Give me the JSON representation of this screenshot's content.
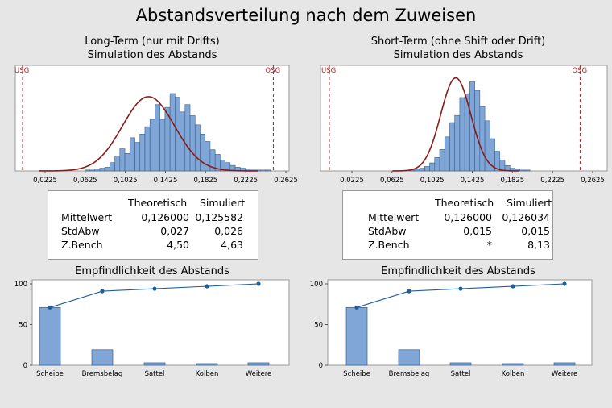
{
  "title": "Abstandsverteilung nach dem Zuweisen",
  "panels": [
    {
      "subtitle_line1": "Long-Term (nur mit Drifts)",
      "subtitle_line2": "Simulation des Abstands",
      "lsl_label": "USG",
      "usl_label": "OSG",
      "stats": {
        "col_theoretical": "Theoretisch",
        "col_simulated": "Simuliert",
        "rows": [
          {
            "label": "Mittelwert",
            "theoretical": "0,126000",
            "simulated": "0,125582"
          },
          {
            "label": "StdAbw",
            "theoretical": "0,027",
            "simulated": "0,026"
          },
          {
            "label": "Z.Bench",
            "theoretical": "4,50",
            "simulated": "4,63"
          }
        ]
      },
      "sensitivity_title": "Empfindlichkeit des Abstands"
    },
    {
      "subtitle_line1": "Short-Term (ohne Shift oder Drift)",
      "subtitle_line2": "Simulation des Abstands",
      "lsl_label": "USG",
      "usl_label": "OSG",
      "stats": {
        "col_theoretical": "Theoretisch",
        "col_simulated": "Simuliert",
        "rows": [
          {
            "label": "Mittelwert",
            "theoretical": "0,126000",
            "simulated": "0,126034"
          },
          {
            "label": "StdAbw",
            "theoretical": "0,015",
            "simulated": "0,015"
          },
          {
            "label": "Z.Bench",
            "theoretical": "*",
            "simulated": "8,13"
          }
        ]
      },
      "sensitivity_title": "Empfindlichkeit des Abstands"
    }
  ],
  "colors": {
    "bar_fill": "#7fa6d6",
    "bar_stroke": "#3a5f8a",
    "fit_curve": "#8b1a1a",
    "spec_line": "#b22222",
    "cum_line": "#1f5f99"
  },
  "chart_data": [
    {
      "type": "bar",
      "subtype": "histogram",
      "title": "",
      "x_tick_labels": [
        "0,0225",
        "0,0625",
        "0,1025",
        "0,1425",
        "0,1825",
        "0,2225",
        "0,2625"
      ],
      "x_ticks": [
        0.0225,
        0.0625,
        0.1025,
        0.1425,
        0.1825,
        0.2225,
        0.2625
      ],
      "xlim": [
        -0.002,
        0.279
      ],
      "lsl": 0.0,
      "usl": 0.25,
      "bin_start": 0.062,
      "bin_width": 0.005,
      "values": [
        1,
        1,
        2,
        3,
        4,
        9,
        16,
        24,
        19,
        36,
        31,
        40,
        48,
        56,
        72,
        56,
        69,
        84,
        80,
        64,
        72,
        60,
        50,
        40,
        32,
        23,
        18,
        12,
        9,
        6,
        4,
        3,
        2,
        1,
        1,
        1,
        1
      ],
      "fit": {
        "type": "normal",
        "mean": 0.125582,
        "sd": 0.026
      }
    },
    {
      "type": "bar",
      "subtype": "histogram",
      "title": "",
      "x_tick_labels": [
        "0,0225",
        "0,0625",
        "0,1025",
        "0,1425",
        "0,1825",
        "0,2225",
        "0,2625"
      ],
      "x_ticks": [
        0.0225,
        0.0625,
        0.1025,
        0.1425,
        0.1825,
        0.2225,
        0.2625
      ],
      "xlim": [
        -0.002,
        0.279
      ],
      "lsl": 0.0,
      "usl": 0.25,
      "bin_start": 0.08,
      "bin_width": 0.005,
      "values": [
        1,
        2,
        3,
        5,
        9,
        15,
        24,
        38,
        54,
        62,
        82,
        86,
        100,
        90,
        72,
        56,
        36,
        22,
        12,
        6,
        3,
        2,
        1,
        1
      ],
      "fit": {
        "type": "normal",
        "mean": 0.126034,
        "sd": 0.015
      }
    },
    {
      "type": "bar",
      "title": "Empfindlichkeit des Abstands",
      "categories": [
        "Scheibe",
        "Bremsbelag",
        "Sattel",
        "Kolben",
        "Weitere"
      ],
      "values": [
        71,
        19,
        3,
        2,
        3
      ],
      "cumulative": [
        71,
        91,
        94,
        97,
        100
      ],
      "y_ticks": [
        0,
        50,
        100
      ],
      "ylim": [
        0,
        105
      ]
    },
    {
      "type": "bar",
      "title": "Empfindlichkeit des Abstands",
      "categories": [
        "Scheibe",
        "Bremsbelag",
        "Sattel",
        "Kolben",
        "Weitere"
      ],
      "values": [
        71,
        19,
        3,
        2,
        3
      ],
      "cumulative": [
        71,
        91,
        94,
        97,
        100
      ],
      "y_ticks": [
        0,
        50,
        100
      ],
      "ylim": [
        0,
        105
      ]
    }
  ]
}
